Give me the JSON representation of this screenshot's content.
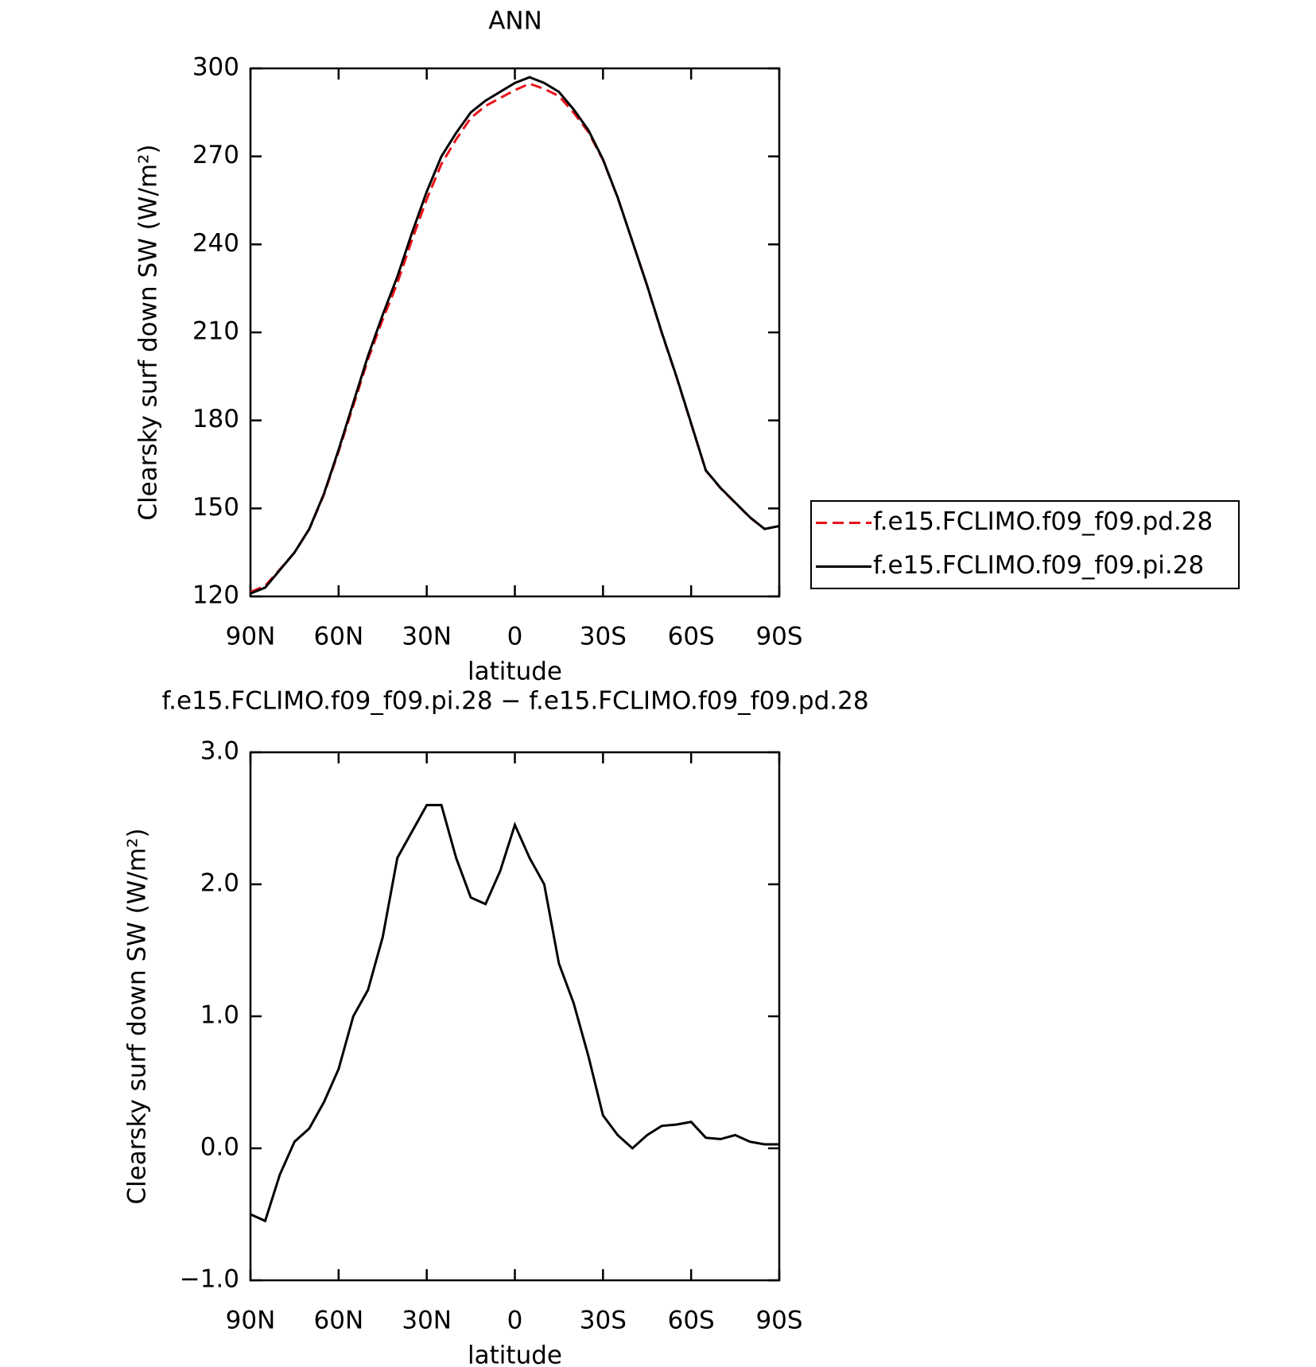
{
  "chart_data": [
    {
      "type": "line",
      "title": "ANN",
      "xlabel": "latitude",
      "ylabel": "Clearsky surf down SW (W/m²)",
      "x": [
        90,
        85,
        80,
        75,
        70,
        65,
        60,
        55,
        50,
        45,
        40,
        35,
        30,
        25,
        20,
        15,
        10,
        5,
        0,
        -5,
        -10,
        -15,
        -20,
        -25,
        -30,
        -35,
        -40,
        -45,
        -50,
        -55,
        -60,
        -65,
        -70,
        -75,
        -80,
        -85,
        -90
      ],
      "xlim": [
        90,
        -90
      ],
      "xticks": [
        {
          "value": 90,
          "label": "90N"
        },
        {
          "value": 60,
          "label": "60N"
        },
        {
          "value": 30,
          "label": "30N"
        },
        0,
        {
          "value": -30,
          "label": "30S"
        },
        {
          "value": -60,
          "label": "60S"
        },
        {
          "value": -90,
          "label": "90S"
        }
      ],
      "ylim": [
        120,
        300
      ],
      "yticks": [
        120,
        150,
        180,
        210,
        240,
        270,
        300
      ],
      "legend": "outside-right",
      "series": [
        {
          "name": "f.e15.FCLIMO.f09_f09.pd.28",
          "color": "#e8141a",
          "dash": true,
          "values": [
            121.5,
            123.6,
            129.2,
            135,
            142.9,
            154.7,
            169.4,
            185,
            200.8,
            214.4,
            226.8,
            241.6,
            255.4,
            267.4,
            275.8,
            283.1,
            287.2,
            289.9,
            292.6,
            294.8,
            293,
            290.6,
            284.9,
            278.3,
            268.8,
            255.9,
            241,
            225.9,
            209.8,
            194.8,
            178.8,
            162.9,
            156.9,
            151.9,
            146.9,
            143,
            144
          ]
        },
        {
          "name": "f.e15.FCLIMO.f09_f09.pi.28",
          "color": "#000000",
          "dash": false,
          "values": [
            121,
            123,
            129,
            135,
            143,
            155,
            170,
            186,
            202,
            216,
            229,
            244,
            258,
            270,
            278,
            285,
            289,
            292,
            295,
            297,
            295,
            292,
            286,
            279,
            269,
            256,
            241,
            226,
            210,
            195,
            179,
            163,
            157,
            152,
            147,
            143,
            144
          ]
        }
      ]
    },
    {
      "type": "line",
      "title": "f.e15.FCLIMO.f09_f09.pi.28 − f.e15.FCLIMO.f09_f09.pd.28",
      "xlabel": "latitude",
      "ylabel": "Clearsky surf down SW (W/m²)",
      "x": [
        90,
        85,
        80,
        75,
        70,
        65,
        60,
        55,
        50,
        45,
        40,
        35,
        30,
        25,
        20,
        15,
        10,
        5,
        0,
        -5,
        -10,
        -15,
        -20,
        -25,
        -30,
        -35,
        -40,
        -45,
        -50,
        -55,
        -60,
        -65,
        -70,
        -75,
        -80,
        -85,
        -90
      ],
      "xlim": [
        90,
        -90
      ],
      "xticks": [
        {
          "value": 90,
          "label": "90N"
        },
        {
          "value": 60,
          "label": "60N"
        },
        {
          "value": 30,
          "label": "30N"
        },
        0,
        {
          "value": -30,
          "label": "30S"
        },
        {
          "value": -60,
          "label": "60S"
        },
        {
          "value": -90,
          "label": "90S"
        }
      ],
      "ylim": [
        -1,
        3
      ],
      "yticks": [
        {
          "value": -1,
          "label": "−1.0"
        },
        {
          "value": 0,
          "label": "0.0"
        },
        {
          "value": 1,
          "label": "1.0"
        },
        {
          "value": 2,
          "label": "2.0"
        },
        {
          "value": 3,
          "label": "3.0"
        }
      ],
      "color": "#000000",
      "values": [
        -0.5,
        -0.55,
        -0.2,
        0.05,
        0.15,
        0.35,
        0.6,
        1.0,
        1.2,
        1.6,
        2.2,
        2.4,
        2.6,
        2.6,
        2.2,
        1.9,
        1.85,
        2.1,
        2.45,
        2.2,
        2.0,
        1.4,
        1.1,
        0.7,
        0.25,
        0.1,
        0.0,
        0.1,
        0.17,
        0.18,
        0.2,
        0.08,
        0.07,
        0.1,
        0.05,
        0.03,
        0.03
      ]
    }
  ]
}
